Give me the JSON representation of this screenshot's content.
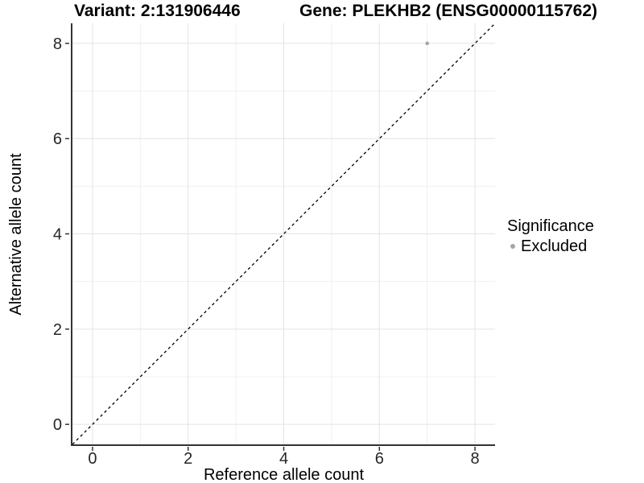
{
  "header": {
    "title_left": "Variant: 2:131906446",
    "title_right": "Gene: PLEKHB2 (ENSG00000115762)"
  },
  "chart_data": {
    "type": "scatter",
    "title_left": "Variant: 2:131906446",
    "title_right": "Gene: PLEKHB2 (ENSG00000115762)",
    "xlabel": "Reference allele count",
    "ylabel": "Alternative allele count",
    "xlim": [
      -0.42,
      8.42
    ],
    "ylim": [
      -0.42,
      8.42
    ],
    "xticks": [
      0,
      2,
      4,
      6,
      8
    ],
    "yticks": [
      0,
      2,
      4,
      6,
      8
    ],
    "x_minor_ticks": [
      1,
      3,
      5,
      7
    ],
    "y_minor_ticks": [
      1,
      3,
      5,
      7
    ],
    "grid": true,
    "grid_major_color": "#e3e3e3",
    "grid_minor_color": "#f0f0f0",
    "axis_line_color": "#333333",
    "tick_label_color": "#262626",
    "points": [
      {
        "x": 7,
        "y": 8,
        "series": "Excluded"
      }
    ],
    "series_colors": {
      "Excluded": "#a6a6a6"
    },
    "abline": {
      "slope": 1,
      "intercept": 0,
      "style": "dashed",
      "color": "#000000"
    },
    "legend": {
      "title": "Significance",
      "position": "right",
      "entries": [
        {
          "label": "Excluded",
          "color": "#a6a6a6"
        }
      ]
    }
  }
}
